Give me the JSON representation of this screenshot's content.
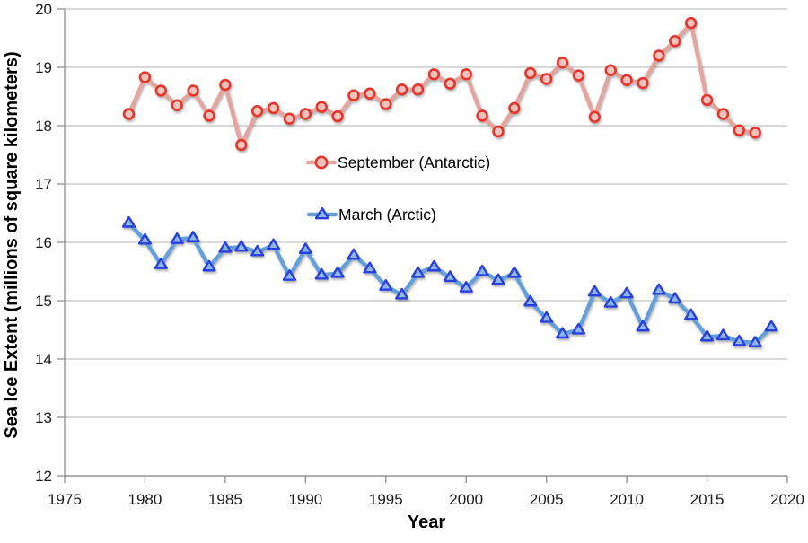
{
  "chart_data": {
    "type": "line",
    "title": "",
    "xlabel": "Year",
    "ylabel": "Sea Ice Extent (millions of square kilometers)",
    "xlim": [
      1975,
      2020
    ],
    "ylim": [
      12,
      20
    ],
    "x_ticks": [
      1975,
      1980,
      1985,
      1990,
      1995,
      2000,
      2005,
      2010,
      2015,
      2020
    ],
    "y_ticks": [
      12,
      13,
      14,
      15,
      16,
      17,
      18,
      19,
      20
    ],
    "grid": "horizontal-only",
    "grid_color": "#c2c2c2",
    "axis_color": "#969696",
    "legend_position": "inside-left-middle",
    "series": [
      {
        "name": "September (Antarctic)",
        "marker": "circle",
        "line_color": "#e5a59e",
        "marker_stroke": "#e6352b",
        "marker_fill": "#f3c4bd",
        "x": [
          1979,
          1980,
          1981,
          1982,
          1983,
          1984,
          1985,
          1986,
          1987,
          1988,
          1989,
          1990,
          1991,
          1992,
          1993,
          1994,
          1995,
          1996,
          1997,
          1998,
          1999,
          2000,
          2001,
          2002,
          2003,
          2004,
          2005,
          2006,
          2007,
          2008,
          2009,
          2010,
          2011,
          2012,
          2013,
          2014,
          2015,
          2016,
          2017,
          2018
        ],
        "values": [
          18.2,
          18.83,
          18.6,
          18.35,
          18.6,
          18.17,
          18.7,
          17.67,
          18.25,
          18.3,
          18.12,
          18.2,
          18.32,
          18.16,
          18.52,
          18.55,
          18.37,
          18.62,
          18.62,
          18.88,
          18.72,
          18.88,
          18.17,
          17.9,
          18.3,
          18.9,
          18.8,
          19.08,
          18.86,
          18.15,
          18.95,
          18.78,
          18.73,
          19.2,
          19.45,
          19.76,
          18.44,
          18.2,
          17.92,
          17.88
        ]
      },
      {
        "name": "March (Arctic)",
        "marker": "triangle",
        "line_color": "#63a0db",
        "marker_stroke": "#2b3fdd",
        "marker_fill": "#8db6ea",
        "x": [
          1979,
          1980,
          1981,
          1982,
          1983,
          1984,
          1985,
          1986,
          1987,
          1988,
          1989,
          1990,
          1991,
          1992,
          1993,
          1994,
          1995,
          1996,
          1997,
          1998,
          1999,
          2000,
          2001,
          2002,
          2003,
          2004,
          2005,
          2006,
          2007,
          2008,
          2009,
          2010,
          2011,
          2012,
          2013,
          2014,
          2015,
          2016,
          2017,
          2018,
          2019
        ],
        "values": [
          16.33,
          16.04,
          15.62,
          16.05,
          16.08,
          15.58,
          15.9,
          15.92,
          15.84,
          15.95,
          15.42,
          15.88,
          15.44,
          15.47,
          15.78,
          15.55,
          15.25,
          15.1,
          15.47,
          15.58,
          15.4,
          15.22,
          15.5,
          15.35,
          15.47,
          14.98,
          14.7,
          14.43,
          14.5,
          15.15,
          14.96,
          15.12,
          14.55,
          15.18,
          15.03,
          14.75,
          14.38,
          14.4,
          14.3,
          14.28,
          14.55
        ]
      }
    ]
  }
}
